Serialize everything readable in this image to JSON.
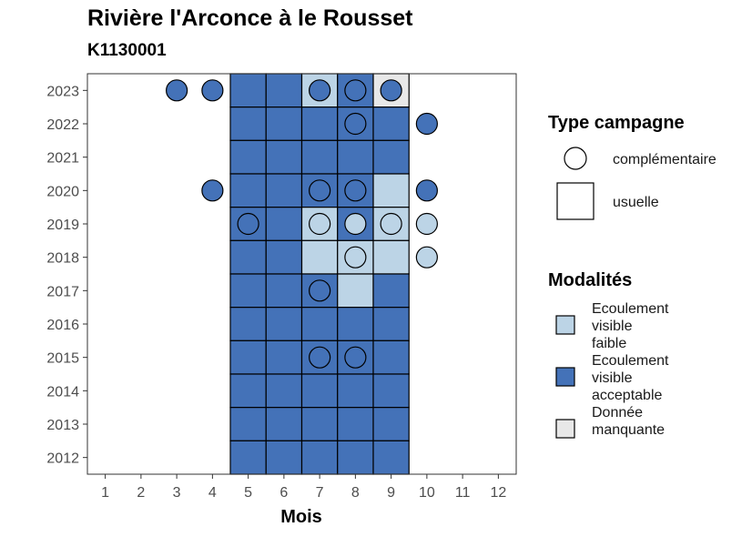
{
  "title": "Rivière l'Arconce à le Rousset",
  "subtitle": "K1130001",
  "chart_data": {
    "type": "heatmap",
    "xlabel": "Mois",
    "ylabel": "",
    "x_ticks": [
      "1",
      "2",
      "3",
      "4",
      "5",
      "6",
      "7",
      "8",
      "9",
      "10",
      "11",
      "12"
    ],
    "y_ticks": [
      "2012",
      "2013",
      "2014",
      "2015",
      "2016",
      "2017",
      "2018",
      "2019",
      "2020",
      "2021",
      "2022",
      "2023"
    ],
    "xlim": [
      0.5,
      12.5
    ],
    "ylim": [
      2011.5,
      2023.5
    ],
    "colors": {
      "ecoulement_visible_faible": "#bcd4e6",
      "ecoulement_visible_acceptable": "#4472b8",
      "donnee_manquante": "#e8e8e8"
    },
    "cells": [
      {
        "year": 2023,
        "month": 5,
        "modalite": "ecoulement_visible_acceptable"
      },
      {
        "year": 2023,
        "month": 6,
        "modalite": "ecoulement_visible_acceptable"
      },
      {
        "year": 2023,
        "month": 7,
        "modalite": "ecoulement_visible_faible"
      },
      {
        "year": 2023,
        "month": 8,
        "modalite": "ecoulement_visible_acceptable"
      },
      {
        "year": 2023,
        "month": 9,
        "modalite": "donnee_manquante"
      },
      {
        "year": 2022,
        "month": 5,
        "modalite": "ecoulement_visible_acceptable"
      },
      {
        "year": 2022,
        "month": 6,
        "modalite": "ecoulement_visible_acceptable"
      },
      {
        "year": 2022,
        "month": 7,
        "modalite": "ecoulement_visible_acceptable"
      },
      {
        "year": 2022,
        "month": 8,
        "modalite": "ecoulement_visible_acceptable"
      },
      {
        "year": 2022,
        "month": 9,
        "modalite": "ecoulement_visible_acceptable"
      },
      {
        "year": 2021,
        "month": 5,
        "modalite": "ecoulement_visible_acceptable"
      },
      {
        "year": 2021,
        "month": 6,
        "modalite": "ecoulement_visible_acceptable"
      },
      {
        "year": 2021,
        "month": 7,
        "modalite": "ecoulement_visible_acceptable"
      },
      {
        "year": 2021,
        "month": 8,
        "modalite": "ecoulement_visible_acceptable"
      },
      {
        "year": 2021,
        "month": 9,
        "modalite": "ecoulement_visible_acceptable"
      },
      {
        "year": 2020,
        "month": 5,
        "modalite": "ecoulement_visible_acceptable"
      },
      {
        "year": 2020,
        "month": 6,
        "modalite": "ecoulement_visible_acceptable"
      },
      {
        "year": 2020,
        "month": 7,
        "modalite": "ecoulement_visible_acceptable"
      },
      {
        "year": 2020,
        "month": 8,
        "modalite": "ecoulement_visible_acceptable"
      },
      {
        "year": 2020,
        "month": 9,
        "modalite": "ecoulement_visible_faible"
      },
      {
        "year": 2019,
        "month": 5,
        "modalite": "ecoulement_visible_acceptable"
      },
      {
        "year": 2019,
        "month": 6,
        "modalite": "ecoulement_visible_acceptable"
      },
      {
        "year": 2019,
        "month": 7,
        "modalite": "ecoulement_visible_faible"
      },
      {
        "year": 2019,
        "month": 8,
        "modalite": "ecoulement_visible_acceptable"
      },
      {
        "year": 2019,
        "month": 9,
        "modalite": "ecoulement_visible_faible"
      },
      {
        "year": 2018,
        "month": 5,
        "modalite": "ecoulement_visible_acceptable"
      },
      {
        "year": 2018,
        "month": 6,
        "modalite": "ecoulement_visible_acceptable"
      },
      {
        "year": 2018,
        "month": 7,
        "modalite": "ecoulement_visible_faible"
      },
      {
        "year": 2018,
        "month": 8,
        "modalite": "ecoulement_visible_faible"
      },
      {
        "year": 2018,
        "month": 9,
        "modalite": "ecoulement_visible_faible"
      },
      {
        "year": 2017,
        "month": 5,
        "modalite": "ecoulement_visible_acceptable"
      },
      {
        "year": 2017,
        "month": 6,
        "modalite": "ecoulement_visible_acceptable"
      },
      {
        "year": 2017,
        "month": 7,
        "modalite": "ecoulement_visible_acceptable"
      },
      {
        "year": 2017,
        "month": 8,
        "modalite": "ecoulement_visible_faible"
      },
      {
        "year": 2017,
        "month": 9,
        "modalite": "ecoulement_visible_acceptable"
      },
      {
        "year": 2016,
        "month": 5,
        "modalite": "ecoulement_visible_acceptable"
      },
      {
        "year": 2016,
        "month": 6,
        "modalite": "ecoulement_visible_acceptable"
      },
      {
        "year": 2016,
        "month": 7,
        "modalite": "ecoulement_visible_acceptable"
      },
      {
        "year": 2016,
        "month": 8,
        "modalite": "ecoulement_visible_acceptable"
      },
      {
        "year": 2016,
        "month": 9,
        "modalite": "ecoulement_visible_acceptable"
      },
      {
        "year": 2015,
        "month": 5,
        "modalite": "ecoulement_visible_acceptable"
      },
      {
        "year": 2015,
        "month": 6,
        "modalite": "ecoulement_visible_acceptable"
      },
      {
        "year": 2015,
        "month": 7,
        "modalite": "ecoulement_visible_acceptable"
      },
      {
        "year": 2015,
        "month": 8,
        "modalite": "ecoulement_visible_acceptable"
      },
      {
        "year": 2015,
        "month": 9,
        "modalite": "ecoulement_visible_acceptable"
      },
      {
        "year": 2014,
        "month": 5,
        "modalite": "ecoulement_visible_acceptable"
      },
      {
        "year": 2014,
        "month": 6,
        "modalite": "ecoulement_visible_acceptable"
      },
      {
        "year": 2014,
        "month": 7,
        "modalite": "ecoulement_visible_acceptable"
      },
      {
        "year": 2014,
        "month": 8,
        "modalite": "ecoulement_visible_acceptable"
      },
      {
        "year": 2014,
        "month": 9,
        "modalite": "ecoulement_visible_acceptable"
      },
      {
        "year": 2013,
        "month": 5,
        "modalite": "ecoulement_visible_acceptable"
      },
      {
        "year": 2013,
        "month": 6,
        "modalite": "ecoulement_visible_acceptable"
      },
      {
        "year": 2013,
        "month": 7,
        "modalite": "ecoulement_visible_acceptable"
      },
      {
        "year": 2013,
        "month": 8,
        "modalite": "ecoulement_visible_acceptable"
      },
      {
        "year": 2013,
        "month": 9,
        "modalite": "ecoulement_visible_acceptable"
      },
      {
        "year": 2012,
        "month": 5,
        "modalite": "ecoulement_visible_acceptable"
      },
      {
        "year": 2012,
        "month": 6,
        "modalite": "ecoulement_visible_acceptable"
      },
      {
        "year": 2012,
        "month": 7,
        "modalite": "ecoulement_visible_acceptable"
      },
      {
        "year": 2012,
        "month": 8,
        "modalite": "ecoulement_visible_acceptable"
      },
      {
        "year": 2012,
        "month": 9,
        "modalite": "ecoulement_visible_acceptable"
      }
    ],
    "points": [
      {
        "year": 2023,
        "month": 3,
        "modalite": "ecoulement_visible_acceptable"
      },
      {
        "year": 2023,
        "month": 4,
        "modalite": "ecoulement_visible_acceptable"
      },
      {
        "year": 2023,
        "month": 7,
        "modalite": "ecoulement_visible_acceptable"
      },
      {
        "year": 2023,
        "month": 8,
        "modalite": "ecoulement_visible_acceptable"
      },
      {
        "year": 2023,
        "month": 9,
        "modalite": "ecoulement_visible_acceptable"
      },
      {
        "year": 2022,
        "month": 8,
        "modalite": "ecoulement_visible_acceptable"
      },
      {
        "year": 2022,
        "month": 10,
        "modalite": "ecoulement_visible_acceptable"
      },
      {
        "year": 2020,
        "month": 4,
        "modalite": "ecoulement_visible_acceptable"
      },
      {
        "year": 2020,
        "month": 7,
        "modalite": "ecoulement_visible_acceptable"
      },
      {
        "year": 2020,
        "month": 8,
        "modalite": "ecoulement_visible_acceptable"
      },
      {
        "year": 2020,
        "month": 10,
        "modalite": "ecoulement_visible_acceptable"
      },
      {
        "year": 2019,
        "month": 5,
        "modalite": "ecoulement_visible_acceptable"
      },
      {
        "year": 2019,
        "month": 7,
        "modalite": "ecoulement_visible_faible"
      },
      {
        "year": 2019,
        "month": 8,
        "modalite": "ecoulement_visible_faible"
      },
      {
        "year": 2019,
        "month": 9,
        "modalite": "ecoulement_visible_faible"
      },
      {
        "year": 2019,
        "month": 10,
        "modalite": "ecoulement_visible_faible"
      },
      {
        "year": 2018,
        "month": 8,
        "modalite": "ecoulement_visible_faible"
      },
      {
        "year": 2018,
        "month": 10,
        "modalite": "ecoulement_visible_faible"
      },
      {
        "year": 2017,
        "month": 7,
        "modalite": "ecoulement_visible_acceptable"
      },
      {
        "year": 2015,
        "month": 7,
        "modalite": "ecoulement_visible_acceptable"
      },
      {
        "year": 2015,
        "month": 8,
        "modalite": "ecoulement_visible_acceptable"
      }
    ],
    "legend": {
      "placement": "right",
      "type_campagne_title": "Type campagne",
      "type_campagne_items": [
        {
          "shape": "circle",
          "label": "complémentaire"
        },
        {
          "shape": "square",
          "label": "usuelle"
        }
      ],
      "modalites_title": "Modalités",
      "modalites_items": [
        {
          "key": "ecoulement_visible_faible",
          "lines": [
            "Ecoulement",
            "visible",
            "faible"
          ]
        },
        {
          "key": "ecoulement_visible_acceptable",
          "lines": [
            "Ecoulement",
            "visible",
            "acceptable"
          ]
        },
        {
          "key": "donnee_manquante",
          "lines": [
            "Donnée",
            "manquante"
          ]
        }
      ]
    }
  }
}
